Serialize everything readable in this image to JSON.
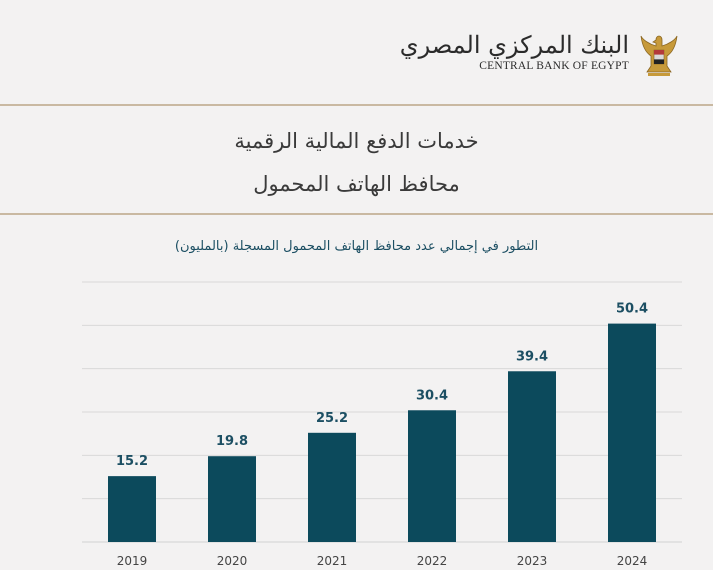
{
  "header": {
    "logo_ar": "البنك المركزي المصري",
    "logo_en": "CENTRAL BANK OF EGYPT",
    "title_line1": "خدمات الدفع  المالية الرقمية",
    "title_line2": "محافظ الهاتف المحمول"
  },
  "colors": {
    "bar": "#0c4a5c",
    "value_label": "#1c4f63",
    "gridline": "#d8d8d8",
    "rule": "#c9b9a2",
    "background": "#f3f2f2"
  },
  "chart_data": {
    "type": "bar",
    "title": "التطور في إجمالي عدد محافظ الهاتف المحمول المسجلة (بالمليون)",
    "categories": [
      "2019",
      "2020",
      "2021",
      "2022",
      "2023",
      "2024"
    ],
    "values": [
      15.2,
      19.8,
      25.2,
      30.4,
      39.4,
      50.4
    ],
    "value_labels": [
      "15.2",
      "19.8",
      "25.2",
      "30.4",
      "39.4",
      "50.4"
    ],
    "xlabel": "",
    "ylabel": "",
    "ylim": [
      0,
      60
    ],
    "grid": true,
    "legend": "none"
  }
}
